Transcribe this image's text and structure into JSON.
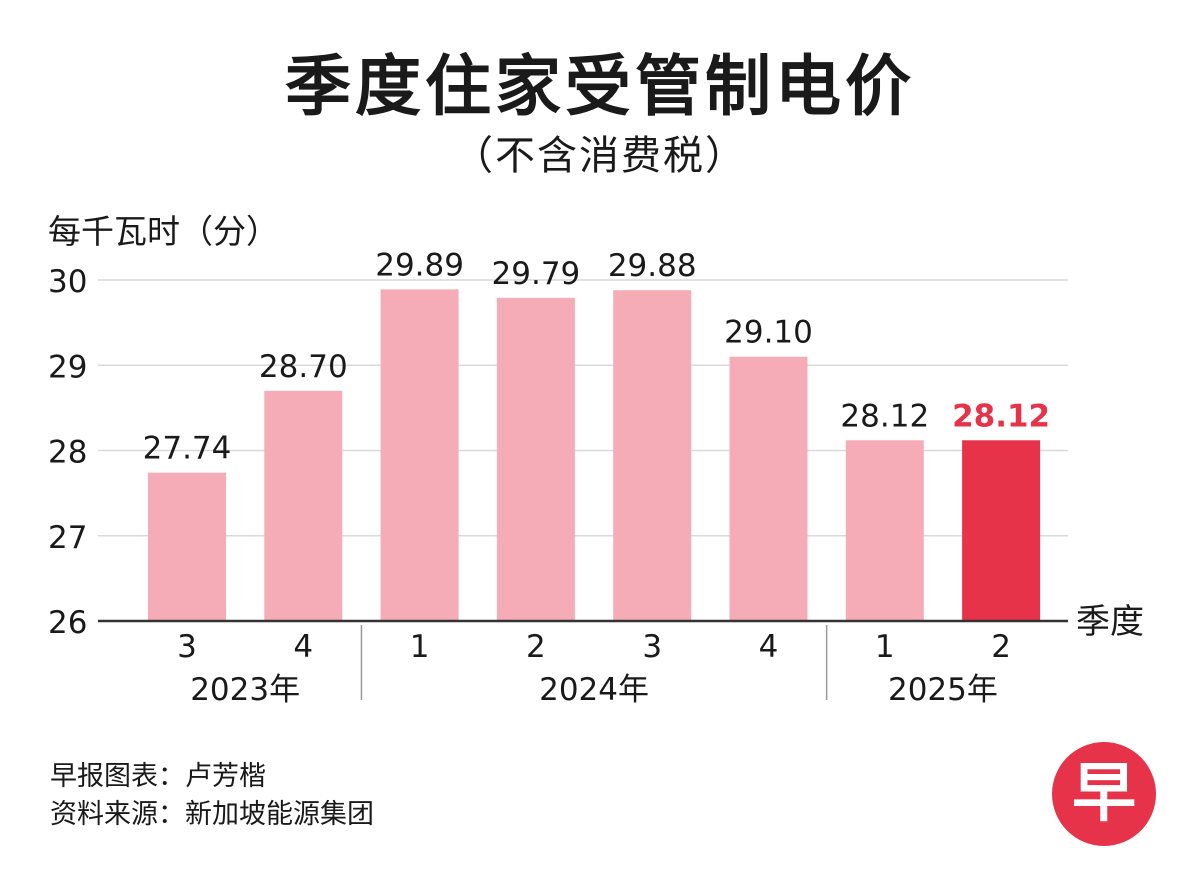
{
  "title": "季度住家受管制电价",
  "subtitle": "（不含消费税）",
  "credits": {
    "line1": "早报图表：卢芳楷",
    "line2": "资料来源：新加坡能源集团"
  },
  "logo": {
    "text": "早",
    "color": "#e7334a"
  },
  "chart_data": {
    "type": "bar",
    "ylabel": "每千瓦时（分）",
    "xlabel": "季度",
    "ylim": [
      26,
      30
    ],
    "yticks": [
      26,
      27,
      28,
      29,
      30
    ],
    "grid": true,
    "categories": [
      "3",
      "4",
      "1",
      "2",
      "3",
      "4",
      "1",
      "2"
    ],
    "years": [
      {
        "label": "2023年",
        "count": 2
      },
      {
        "label": "2024年",
        "count": 4
      },
      {
        "label": "2025年",
        "count": 2
      }
    ],
    "values": [
      27.74,
      28.7,
      29.89,
      29.79,
      29.88,
      29.1,
      28.12,
      28.12
    ],
    "value_labels": [
      "27.74",
      "28.70",
      "29.89",
      "29.79",
      "29.88",
      "29.10",
      "28.12",
      "28.12"
    ],
    "highlight_index": 7,
    "colors": {
      "bar": "#f6acb7",
      "highlight": "#e7334a",
      "grid": "#d9d9d9",
      "axis": "#333333"
    }
  }
}
